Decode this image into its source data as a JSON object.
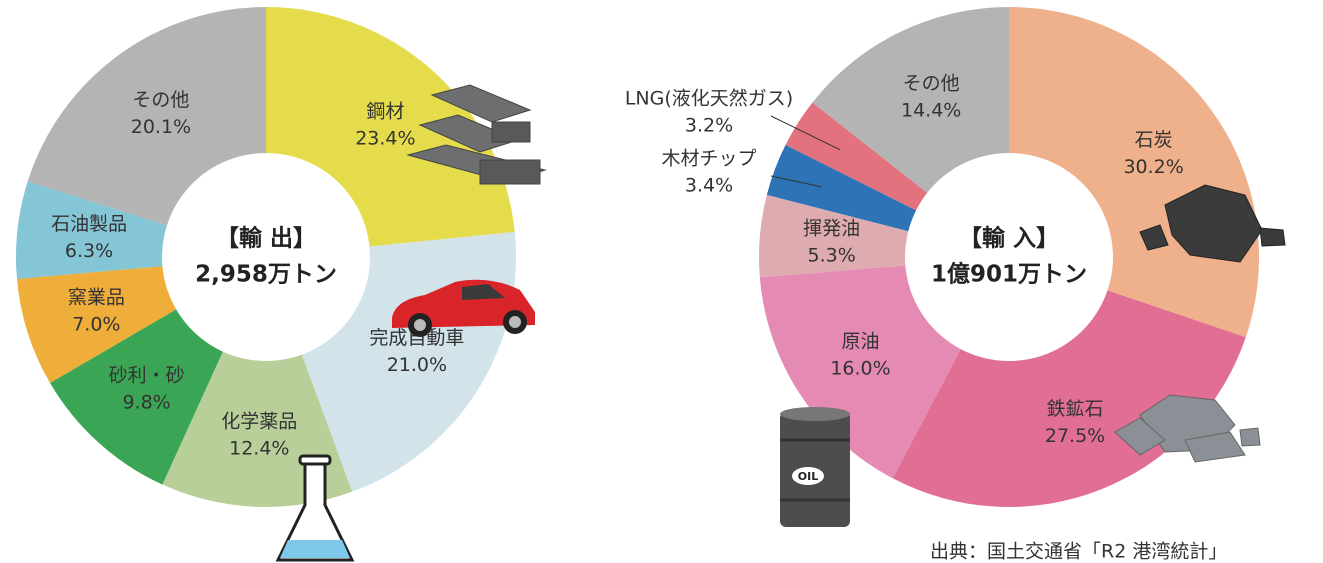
{
  "chart_data": [
    {
      "type": "pie",
      "title": "【輸 出】",
      "subtitle": "2,958万トン",
      "categories": [
        "鋼材",
        "完成自動車",
        "化学薬品",
        "砂利・砂",
        "窯業品",
        "石油製品",
        "その他"
      ],
      "values": [
        23.4,
        21.0,
        12.4,
        9.8,
        7.0,
        6.3,
        20.1
      ],
      "value_labels": [
        "23.4%",
        "21.0%",
        "12.4%",
        "9.8%",
        "7.0%",
        "6.3%",
        "20.1%"
      ],
      "colors": [
        "#e5dc4c",
        "#d2e3ea",
        "#b8cf9a",
        "#3aa655",
        "#efad3a",
        "#84c6d6",
        "#b4b4b5"
      ]
    },
    {
      "type": "pie",
      "title": "【輸 入】",
      "subtitle": "1億901万トン",
      "categories": [
        "石炭",
        "鉄鉱石",
        "原油",
        "揮発油",
        "木材チップ",
        "LNG(液化天然ガス)",
        "その他"
      ],
      "values": [
        30.2,
        27.5,
        16.0,
        5.3,
        3.4,
        3.2,
        14.4
      ],
      "value_labels": [
        "30.2%",
        "27.5%",
        "16.0%",
        "5.3%",
        "3.4%",
        "3.2%",
        "14.4%"
      ],
      "colors": [
        "#efb08c",
        "#e06f93",
        "#e58bb3",
        "#deabb0",
        "#2d73b5",
        "#e2737e",
        "#b4b4b5"
      ]
    }
  ],
  "source": "出典：国土交通省「R2 港湾統計」"
}
